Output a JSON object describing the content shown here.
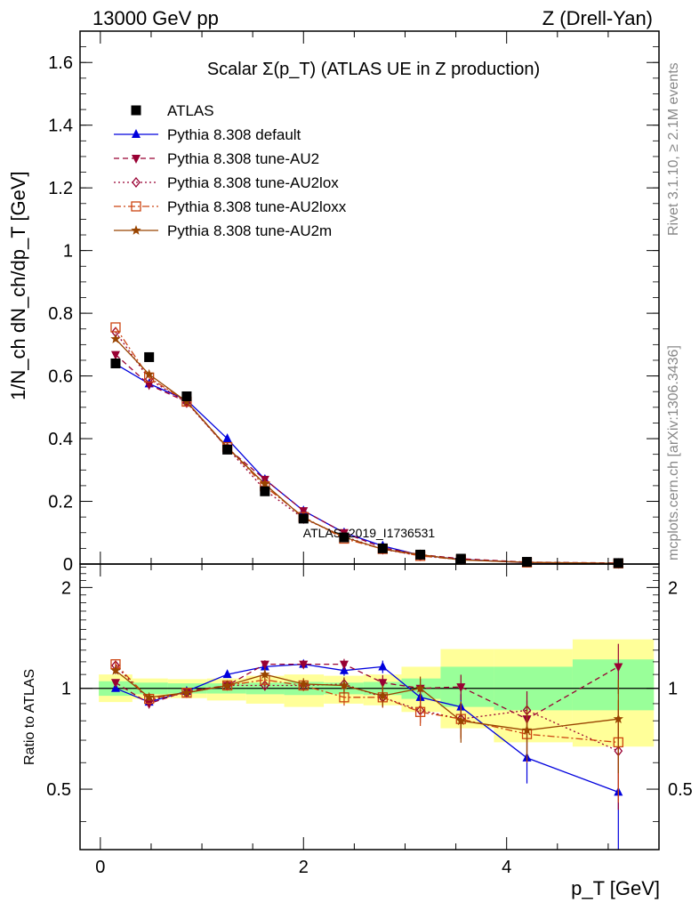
{
  "header": {
    "left": "13000 GeV pp",
    "right": "Z (Drell-Yan)"
  },
  "side_texts": {
    "rivet": "Rivet 3.1.10, ≥ 2.1M events",
    "mcplots": "mcplots.cern.ch [arXiv:1306.3436]"
  },
  "watermark": "ATLAS_2019_I1736531",
  "ratio_ylabel": "Ratio to ATLAS",
  "chart_data": {
    "type": "scatter",
    "title": "Scalar Σ(p_T) (ATLAS UE in Z production)",
    "xlabel": "p_T [GeV]",
    "ylabel": "1/N_ch dN_ch/dp_T [GeV]",
    "xlim": [
      -0.2,
      5.5
    ],
    "ylim": [
      0,
      1.7
    ],
    "ratio_ylim": [
      0.33,
      2.35
    ],
    "x": [
      0.15,
      0.48,
      0.85,
      1.25,
      1.62,
      2.0,
      2.4,
      2.78,
      3.15,
      3.55,
      4.2,
      5.1
    ],
    "x_ticks": [
      0,
      2,
      4
    ],
    "x_tick_labels": [
      "0",
      "2",
      "4"
    ],
    "y_ticks": [
      0,
      0.2,
      0.4,
      0.6,
      0.8,
      1,
      1.2,
      1.4,
      1.6
    ],
    "y_tick_labels": [
      "0",
      "0.2",
      "0.4",
      "0.6",
      "0.8",
      "1",
      "1.2",
      "1.4",
      "1.6"
    ],
    "ratio_ticks": [
      0.5,
      1,
      2
    ],
    "ratio_tick_labels": [
      "0.5",
      "1",
      "2"
    ],
    "reference": {
      "name": "ATLAS",
      "color": "#000000",
      "values": [
        0.64,
        0.66,
        0.535,
        0.365,
        0.232,
        0.145,
        0.085,
        0.05,
        0.03,
        0.017,
        0.007,
        0.003
      ],
      "band_stat_lo": [
        0.95,
        0.96,
        0.965,
        0.965,
        0.96,
        0.955,
        0.96,
        0.955,
        0.93,
        0.88,
        0.86,
        0.86
      ],
      "band_stat_hi": [
        1.05,
        1.04,
        1.035,
        1.035,
        1.04,
        1.045,
        1.04,
        1.045,
        1.07,
        1.16,
        1.16,
        1.22
      ],
      "band_tot_lo": [
        0.91,
        0.93,
        0.935,
        0.92,
        0.9,
        0.88,
        0.9,
        0.89,
        0.85,
        0.76,
        0.69,
        0.67
      ],
      "band_tot_hi": [
        1.1,
        1.07,
        1.065,
        1.07,
        1.09,
        1.1,
        1.09,
        1.1,
        1.16,
        1.31,
        1.31,
        1.4
      ]
    },
    "series": [
      {
        "name": "Pythia 8.308 default",
        "color": "#0000dd",
        "marker": "triangle-up",
        "dash": "none",
        "values": [
          0.638,
          0.575,
          0.523,
          0.4,
          0.27,
          0.17,
          0.1,
          0.058,
          0.028,
          0.015,
          0.004,
          0.0015
        ]
      },
      {
        "name": "Pythia 8.308 tune-AU2",
        "color": "#990033",
        "marker": "triangle-down",
        "dash": "6,4",
        "values": [
          0.668,
          0.572,
          0.517,
          0.37,
          0.27,
          0.17,
          0.1,
          0.052,
          0.03,
          0.017,
          0.006,
          0.0035
        ]
      },
      {
        "name": "Pythia 8.308 tune-AU2lox",
        "color": "#990033",
        "marker": "diamond-open",
        "dash": "2,3",
        "values": [
          0.74,
          0.59,
          0.515,
          0.37,
          0.236,
          0.145,
          0.088,
          0.047,
          0.026,
          0.014,
          0.006,
          0.002
        ]
      },
      {
        "name": "Pythia 8.308 tune-AU2loxx",
        "color": "#cc4411",
        "marker": "square-open",
        "dash": "8,3,2,3",
        "values": [
          0.755,
          0.595,
          0.518,
          0.373,
          0.248,
          0.15,
          0.081,
          0.048,
          0.026,
          0.014,
          0.005,
          0.002
        ]
      },
      {
        "name": "Pythia 8.308 tune-AU2m",
        "color": "#994400",
        "marker": "star",
        "dash": "none",
        "values": [
          0.718,
          0.605,
          0.518,
          0.372,
          0.255,
          0.147,
          0.086,
          0.047,
          0.03,
          0.013,
          0.005,
          0.0025
        ]
      }
    ],
    "ratios": [
      [
        1.0,
        0.91,
        0.98,
        1.1,
        1.16,
        1.18,
        1.13,
        1.16,
        0.94,
        0.88,
        0.62,
        0.49
      ],
      [
        1.04,
        0.9,
        0.98,
        1.02,
        1.18,
        1.18,
        1.18,
        1.04,
        1.0,
        1.01,
        0.81,
        1.16
      ],
      [
        1.17,
        0.92,
        0.97,
        1.02,
        1.02,
        1.02,
        1.03,
        0.94,
        0.86,
        0.81,
        0.86,
        0.65
      ],
      [
        1.18,
        0.93,
        0.97,
        1.02,
        1.06,
        1.02,
        0.94,
        0.94,
        0.85,
        0.81,
        0.73,
        0.69
      ],
      [
        1.13,
        0.94,
        0.97,
        1.02,
        1.1,
        1.03,
        1.02,
        0.95,
        1.0,
        0.8,
        0.75,
        0.81
      ]
    ],
    "ratio_errors": [
      0.02,
      0.01,
      0.01,
      0.02,
      0.03,
      0.03,
      0.04,
      0.05,
      0.06,
      0.08,
      0.1,
      0.18
    ]
  }
}
